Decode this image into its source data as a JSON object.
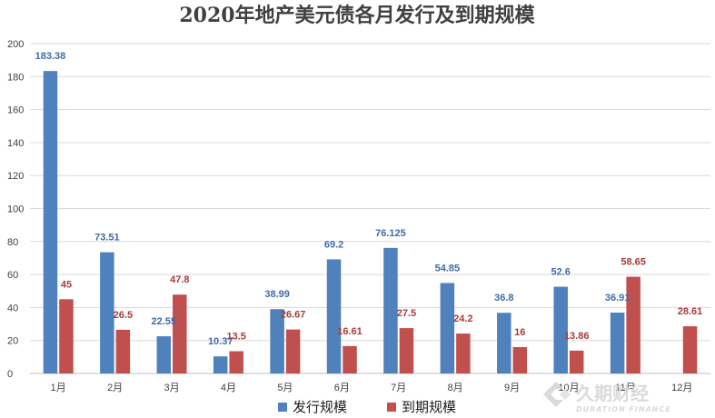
{
  "chart_data": {
    "type": "bar",
    "title": "2020年地产美元债各月发行及到期规模",
    "xlabel": "",
    "ylabel": "",
    "categories": [
      "1月",
      "2月",
      "3月",
      "4月",
      "5月",
      "6月",
      "7月",
      "8月",
      "9月",
      "10月",
      "11月",
      "12月"
    ],
    "ylim": [
      0,
      200
    ],
    "yticks": [
      0,
      20,
      40,
      60,
      80,
      100,
      120,
      140,
      160,
      180,
      200
    ],
    "grid": true,
    "legend_position": "bottom",
    "series": [
      {
        "name": "发行规模",
        "color": "#4f81bd",
        "label_color": "#3e6ca8",
        "values": [
          183.38,
          73.51,
          22.55,
          10.37,
          38.99,
          69.2,
          76.125,
          54.85,
          36.8,
          52.6,
          36.91,
          null
        ],
        "labels": [
          "183.38",
          "73.51",
          "22.55",
          "10.37",
          "38.99",
          "69.2",
          "76.125",
          "54.85",
          "36.8",
          "52.6",
          "36.91",
          ""
        ]
      },
      {
        "name": "到期规模",
        "color": "#c0504d",
        "label_color": "#a53c39",
        "values": [
          45,
          26.5,
          47.8,
          13.5,
          26.67,
          16.61,
          27.5,
          24.2,
          16,
          13.86,
          58.65,
          28.61
        ],
        "labels": [
          "45",
          "26.5",
          "47.8",
          "13.5",
          "26.67",
          "16.61",
          "27.5",
          "24.2",
          "16",
          "13.86",
          "58.65",
          "28.61"
        ]
      }
    ]
  },
  "watermark": {
    "text": "久期财经",
    "subtext": "DURATION FINANCE",
    "icon": "duration-finance-logo-icon"
  }
}
